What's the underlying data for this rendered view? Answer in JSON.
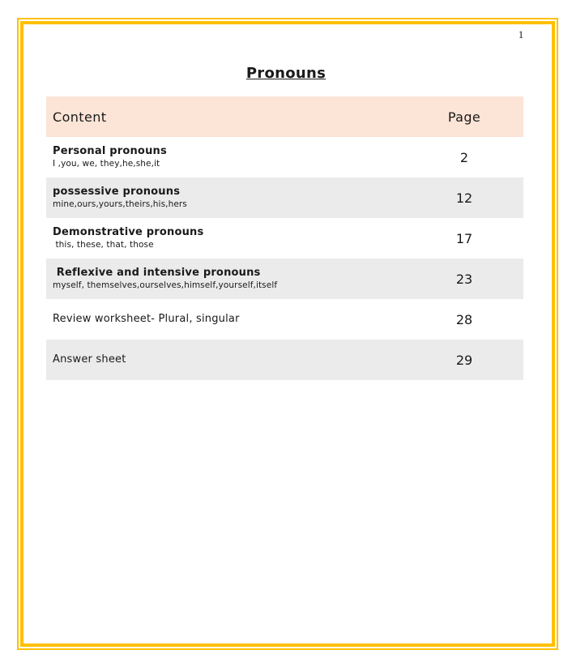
{
  "page": {
    "number": "1",
    "title": "Pronouns",
    "border_color": "#FFC000",
    "header_bg_color": "#FCE4D6",
    "shaded_row_color": "#EBEBEB"
  },
  "toc": {
    "header": {
      "content_label": "Content",
      "page_label": "Page"
    },
    "rows": [
      {
        "title": "Personal pronouns",
        "subtitle": "I ,you, we, they,he,she,it",
        "page": "2",
        "shaded": false,
        "bold": true
      },
      {
        "title": "possessive pronouns",
        "subtitle": "mine,ours,yours,theirs,his,hers",
        "page": "12",
        "shaded": true,
        "bold": true
      },
      {
        "title": "Demonstrative pronouns",
        "subtitle": " this, these, that, those",
        "page": "17",
        "shaded": false,
        "bold": true
      },
      {
        "title": " Reflexive and intensive pronouns",
        "subtitle": "myself, themselves,ourselves,himself,yourself,itself",
        "page": "23",
        "shaded": true,
        "bold": true
      },
      {
        "title": "Review worksheet- Plural, singular",
        "subtitle": "",
        "page": "28",
        "shaded": false,
        "bold": false
      },
      {
        "title": "Answer sheet",
        "subtitle": "",
        "page": "29",
        "shaded": true,
        "bold": false
      }
    ]
  }
}
